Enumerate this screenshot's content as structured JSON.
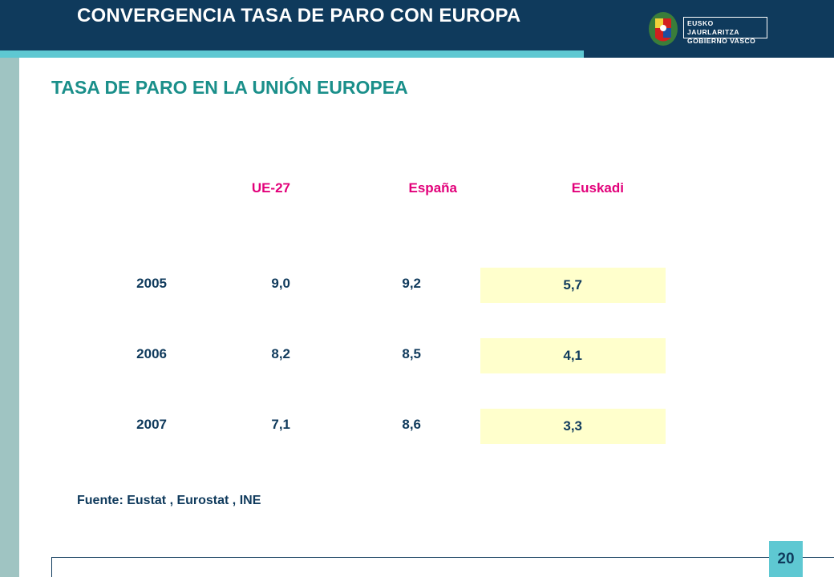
{
  "header": {
    "title": "CONVERGENCIA TASA DE PARO CON EUROPA",
    "logo_line1": "EUSKO JAURLARITZA",
    "logo_line2": "GOBIERNO VASCO"
  },
  "subtitle": "TASA DE PARO EN LA UNIÓN EUROPEA",
  "table": {
    "columns": [
      "UE-27",
      "España",
      "Euskadi"
    ],
    "rows": [
      {
        "year": "2005",
        "values": [
          "9,0",
          "9,2",
          "5,7"
        ]
      },
      {
        "year": "2006",
        "values": [
          "8,2",
          "8,5",
          "4,1"
        ]
      },
      {
        "year": "2007",
        "values": [
          "7,1",
          "8,6",
          "3,3"
        ]
      }
    ]
  },
  "source": "Fuente: Eustat , Eurostat , INE",
  "page_number": "20",
  "colors": {
    "navy": "#0f3a5c",
    "cyan": "#5ec8d2",
    "teal_text": "#1a8f8a",
    "magenta": "#e2007a",
    "highlight": "#ffffcc",
    "side_bar": "#9fc4c2"
  },
  "icons": {
    "logo": "basque-coat-of-arms-icon"
  }
}
